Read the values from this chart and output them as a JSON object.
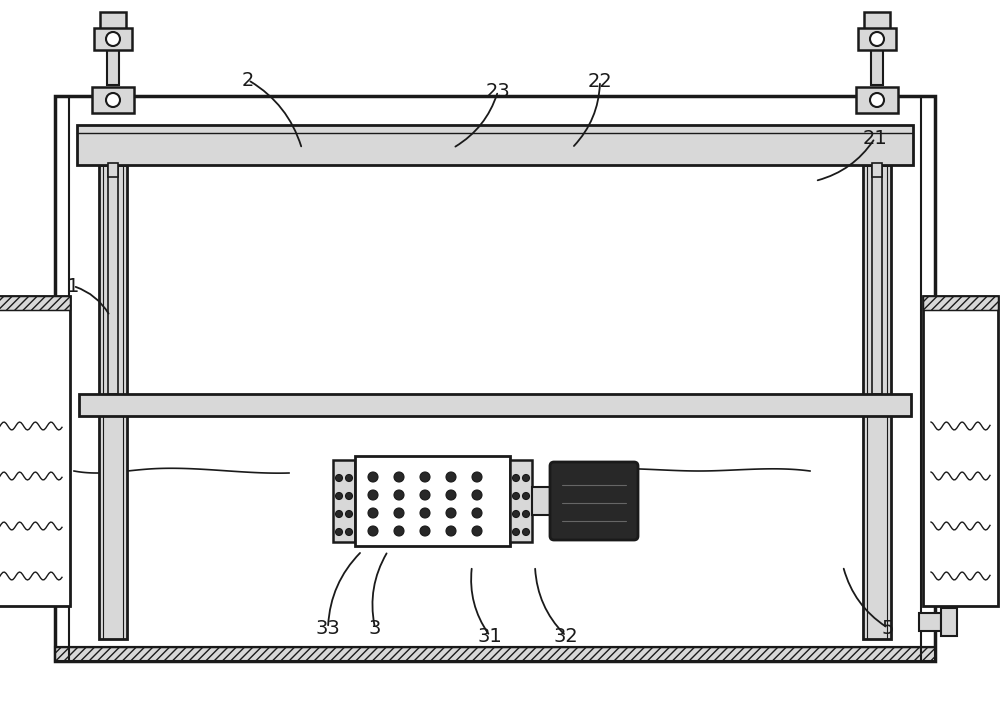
{
  "bg_color": "#ffffff",
  "line_color": "#1a1a1a",
  "fill_light": "#d8d8d8",
  "fill_dark": "#282828",
  "fill_hatch": "#c8c8c8"
}
